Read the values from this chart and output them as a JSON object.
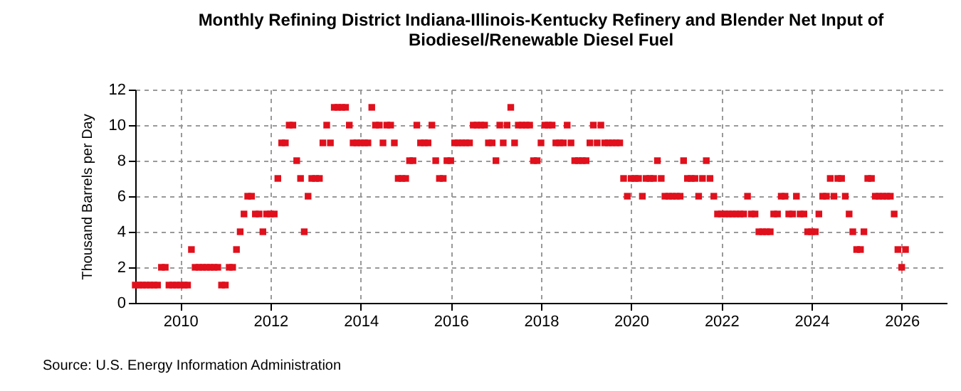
{
  "chart_data": {
    "type": "scatter",
    "title": "Monthly Refining District Indiana-Illinois-Kentucky Refinery and Blender Net Input of Biodiesel/Renewable Diesel Fuel",
    "ylabel": "Thousand Barrels per Day",
    "annotations": [
      "Source: U.S. Energy Information Administration"
    ],
    "x": [
      "2009-01",
      "2009-02",
      "2009-03",
      "2009-04",
      "2009-05",
      "2009-06",
      "2009-07",
      "2009-08",
      "2009-09",
      "2009-10",
      "2009-11",
      "2009-12",
      "2010-01",
      "2010-02",
      "2010-03",
      "2010-04",
      "2010-05",
      "2010-06",
      "2010-07",
      "2010-08",
      "2010-09",
      "2010-10",
      "2010-11",
      "2010-12",
      "2011-01",
      "2011-02",
      "2011-03",
      "2011-04",
      "2011-05",
      "2011-06",
      "2011-07",
      "2011-08",
      "2011-09",
      "2011-10",
      "2011-11",
      "2011-12",
      "2012-01",
      "2012-02",
      "2012-03",
      "2012-04",
      "2012-05",
      "2012-06",
      "2012-07",
      "2012-08",
      "2012-09",
      "2012-10",
      "2012-11",
      "2012-12",
      "2013-01",
      "2013-02",
      "2013-03",
      "2013-04",
      "2013-05",
      "2013-06",
      "2013-07",
      "2013-08",
      "2013-09",
      "2013-10",
      "2013-11",
      "2013-12",
      "2014-01",
      "2014-02",
      "2014-03",
      "2014-04",
      "2014-05",
      "2014-06",
      "2014-07",
      "2014-08",
      "2014-09",
      "2014-10",
      "2014-11",
      "2014-12",
      "2015-01",
      "2015-02",
      "2015-03",
      "2015-04",
      "2015-05",
      "2015-06",
      "2015-07",
      "2015-08",
      "2015-09",
      "2015-10",
      "2015-11",
      "2015-12",
      "2016-01",
      "2016-02",
      "2016-03",
      "2016-04",
      "2016-05",
      "2016-06",
      "2016-07",
      "2016-08",
      "2016-09",
      "2016-10",
      "2016-11",
      "2016-12",
      "2017-01",
      "2017-02",
      "2017-03",
      "2017-04",
      "2017-05",
      "2017-06",
      "2017-07",
      "2017-08",
      "2017-09",
      "2017-10",
      "2017-11",
      "2017-12",
      "2018-01",
      "2018-02",
      "2018-03",
      "2018-04",
      "2018-05",
      "2018-06",
      "2018-07",
      "2018-08",
      "2018-09",
      "2018-10",
      "2018-11",
      "2018-12",
      "2019-01",
      "2019-02",
      "2019-03",
      "2019-04",
      "2019-05",
      "2019-06",
      "2019-07",
      "2019-08",
      "2019-09",
      "2019-10",
      "2019-11",
      "2019-12",
      "2020-01",
      "2020-02",
      "2020-03",
      "2020-04",
      "2020-05",
      "2020-06",
      "2020-07",
      "2020-08",
      "2020-09",
      "2020-10",
      "2020-11",
      "2020-12",
      "2021-01",
      "2021-02",
      "2021-03",
      "2021-04",
      "2021-05",
      "2021-06",
      "2021-07",
      "2021-08",
      "2021-09",
      "2021-10",
      "2021-11",
      "2021-12",
      "2022-01",
      "2022-02",
      "2022-03",
      "2022-04",
      "2022-05",
      "2022-06",
      "2022-07",
      "2022-08",
      "2022-09",
      "2022-10",
      "2022-11",
      "2022-12",
      "2023-01",
      "2023-02",
      "2023-03",
      "2023-04",
      "2023-05",
      "2023-06",
      "2023-07",
      "2023-08",
      "2023-09",
      "2023-10",
      "2023-11",
      "2023-12",
      "2024-01",
      "2024-02",
      "2024-03",
      "2024-04",
      "2024-05",
      "2024-06",
      "2024-07",
      "2024-08",
      "2024-09",
      "2024-10",
      "2024-11",
      "2024-12",
      "2025-01",
      "2025-02",
      "2025-03",
      "2025-04",
      "2025-05",
      "2025-06",
      "2025-07",
      "2025-08",
      "2025-09",
      "2025-10",
      "2025-11",
      "2025-12",
      "2026-01",
      "2026-02"
    ],
    "series": [
      {
        "color": "#e0101c",
        "values": [
          1,
          1,
          1,
          1,
          1,
          1,
          1,
          2,
          2,
          1,
          1,
          1,
          1,
          1,
          1,
          3,
          2,
          2,
          2,
          2,
          2,
          2,
          2,
          1,
          1,
          2,
          2,
          3,
          4,
          5,
          6,
          6,
          5,
          5,
          4,
          5,
          5,
          5,
          7,
          9,
          9,
          10,
          10,
          8,
          7,
          4,
          6,
          7,
          7,
          7,
          9,
          10,
          9,
          11,
          11,
          11,
          11,
          10,
          9,
          9,
          9,
          9,
          9,
          11,
          10,
          10,
          9,
          10,
          10,
          9,
          7,
          7,
          7,
          8,
          8,
          10,
          9,
          9,
          9,
          10,
          8,
          7,
          7,
          8,
          8,
          9,
          9,
          9,
          9,
          9,
          10,
          10,
          10,
          10,
          9,
          9,
          8,
          10,
          9,
          10,
          11,
          9,
          10,
          10,
          10,
          10,
          8,
          8,
          9,
          10,
          10,
          10,
          9,
          9,
          9,
          10,
          9,
          8,
          8,
          8,
          8,
          9,
          10,
          9,
          10,
          9,
          9,
          9,
          9,
          9,
          7,
          6,
          7,
          7,
          7,
          6,
          7,
          7,
          7,
          8,
          7,
          6,
          6,
          6,
          6,
          6,
          8,
          7,
          7,
          7,
          6,
          7,
          8,
          7,
          6,
          5,
          5,
          5,
          5,
          5,
          5,
          5,
          5,
          6,
          5,
          5,
          4,
          4,
          4,
          4,
          5,
          5,
          6,
          6,
          5,
          5,
          6,
          5,
          5,
          4,
          4,
          4,
          5,
          6,
          6,
          7,
          6,
          7,
          7,
          6,
          5,
          4,
          3,
          3,
          4,
          7,
          7,
          6,
          6,
          6,
          6,
          6,
          5,
          3,
          2,
          3
        ]
      }
    ],
    "xlim": [
      "2009-01",
      "2027-01"
    ],
    "xticks": [
      {
        "value": "2010",
        "label": "2010"
      },
      {
        "value": "2012",
        "label": "2012"
      },
      {
        "value": "2014",
        "label": "2014"
      },
      {
        "value": "2016",
        "label": "2016"
      },
      {
        "value": "2018",
        "label": "2018"
      },
      {
        "value": "2020",
        "label": "2020"
      },
      {
        "value": "2022",
        "label": "2022"
      },
      {
        "value": "2024",
        "label": "2024"
      },
      {
        "value": "2026",
        "label": "2026"
      }
    ],
    "ylim": [
      0,
      12
    ],
    "yticks": [
      0,
      2,
      4,
      6,
      8,
      10,
      12
    ],
    "grid": true,
    "marker": "square"
  }
}
